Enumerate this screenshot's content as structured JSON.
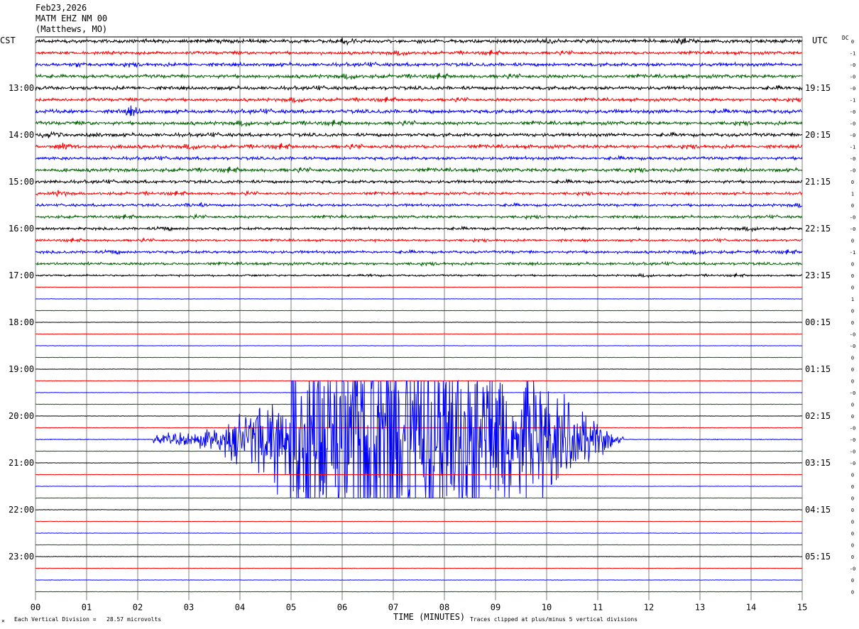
{
  "header": {
    "date": "Feb23,2026",
    "station": "MATM EHZ NM 00",
    "location": "(Matthews, MO)"
  },
  "left_axis_label": "CST",
  "right_axis_label": "UTC",
  "dc_label": "DC",
  "footer": {
    "mark": "✕",
    "scale_note": "Each Vertical Division =   28.57 microvolts",
    "clip_note": "Traces clipped at plus/minus 5 vertical divisions"
  },
  "colors": {
    "trace_cycle": [
      "#000000",
      "#ff0000",
      "#0000ff",
      "#006400"
    ],
    "grid": "#7f7f7f",
    "background": "#ffffff"
  },
  "chart_data": {
    "type": "line",
    "title": "",
    "xlabel": "TIME (MINUTES)",
    "ylabel": "",
    "x_ticks": [
      "00",
      "01",
      "02",
      "03",
      "04",
      "05",
      "06",
      "07",
      "08",
      "09",
      "10",
      "11",
      "12",
      "13",
      "14",
      "15"
    ],
    "xlim": [
      0,
      15
    ],
    "trace_minutes_each": 15,
    "trace_count": 48,
    "first_trace_start_cst": "12:00",
    "left_hour_labels": [
      {
        "trace": 4,
        "label": "13:00"
      },
      {
        "trace": 8,
        "label": "14:00"
      },
      {
        "trace": 12,
        "label": "15:00"
      },
      {
        "trace": 16,
        "label": "16:00"
      },
      {
        "trace": 20,
        "label": "17:00"
      },
      {
        "trace": 24,
        "label": "18:00"
      },
      {
        "trace": 28,
        "label": "19:00"
      },
      {
        "trace": 32,
        "label": "20:00"
      },
      {
        "trace": 36,
        "label": "21:00"
      },
      {
        "trace": 40,
        "label": "22:00"
      },
      {
        "trace": 44,
        "label": "23:00"
      }
    ],
    "right_hour_labels": [
      {
        "trace": 4,
        "label": "19:15"
      },
      {
        "trace": 8,
        "label": "20:15"
      },
      {
        "trace": 12,
        "label": "21:15"
      },
      {
        "trace": 16,
        "label": "22:15"
      },
      {
        "trace": 20,
        "label": "23:15"
      },
      {
        "trace": 24,
        "label": "00:15"
      },
      {
        "trace": 28,
        "label": "01:15"
      },
      {
        "trace": 32,
        "label": "02:15"
      },
      {
        "trace": 36,
        "label": "03:15"
      },
      {
        "trace": 40,
        "label": "04:15"
      },
      {
        "trace": 44,
        "label": "05:15"
      }
    ],
    "dc_offsets": [
      "0",
      "-1",
      "-0",
      "-0",
      "-0",
      "-1",
      "-0",
      "-0",
      "-0",
      "-1",
      "-0",
      "-0",
      "0",
      "1",
      "0",
      "-0",
      "-0",
      "0",
      "-1",
      "0",
      "0",
      "0",
      "1",
      "0",
      "0",
      "-0",
      "-0",
      "0",
      "0",
      "0",
      "-0",
      "0",
      "0",
      "-0",
      "-0",
      "-0",
      "-0",
      "0",
      "0",
      "0",
      "0",
      "0",
      "0",
      "0",
      "0",
      "-0",
      "0",
      "0"
    ],
    "trace_activity": [
      {
        "trace": 0,
        "noise": 0.45
      },
      {
        "trace": 1,
        "noise": 0.4
      },
      {
        "trace": 2,
        "noise": 0.45
      },
      {
        "trace": 3,
        "noise": 0.45
      },
      {
        "trace": 4,
        "noise": 0.45
      },
      {
        "trace": 5,
        "noise": 0.4
      },
      {
        "trace": 6,
        "noise": 0.5
      },
      {
        "trace": 7,
        "noise": 0.45
      },
      {
        "trace": 8,
        "noise": 0.45
      },
      {
        "trace": 9,
        "noise": 0.45
      },
      {
        "trace": 10,
        "noise": 0.4
      },
      {
        "trace": 11,
        "noise": 0.45
      },
      {
        "trace": 12,
        "noise": 0.4
      },
      {
        "trace": 13,
        "noise": 0.35
      },
      {
        "trace": 14,
        "noise": 0.35
      },
      {
        "trace": 15,
        "noise": 0.35
      },
      {
        "trace": 16,
        "noise": 0.35
      },
      {
        "trace": 17,
        "noise": 0.3
      },
      {
        "trace": 18,
        "noise": 0.35
      },
      {
        "trace": 19,
        "noise": 0.35
      },
      {
        "trace": 20,
        "noise": 0.25
      },
      {
        "trace": 21,
        "noise": 0.05
      },
      {
        "trace": 22,
        "noise": 0.05
      },
      {
        "trace": 23,
        "noise": 0.05
      },
      {
        "trace": 24,
        "noise": 0.05
      },
      {
        "trace": 25,
        "noise": 0.05
      },
      {
        "trace": 26,
        "noise": 0.05
      },
      {
        "trace": 27,
        "noise": 0.05
      },
      {
        "trace": 28,
        "noise": 0.05
      },
      {
        "trace": 29,
        "noise": 0.05
      },
      {
        "trace": 30,
        "noise": 0.05
      },
      {
        "trace": 31,
        "noise": 0.05
      },
      {
        "trace": 32,
        "noise": 0.05
      },
      {
        "trace": 33,
        "noise": 0.08
      },
      {
        "trace": 34,
        "noise": 0.1
      },
      {
        "trace": 35,
        "noise": 0.05
      },
      {
        "trace": 36,
        "noise": 0.05
      },
      {
        "trace": 37,
        "noise": 0.05
      },
      {
        "trace": 38,
        "noise": 0.05
      },
      {
        "trace": 39,
        "noise": 0.05
      },
      {
        "trace": 40,
        "noise": 0.06
      },
      {
        "trace": 41,
        "noise": 0.05
      },
      {
        "trace": 42,
        "noise": 0.05
      },
      {
        "trace": 43,
        "noise": 0.05
      },
      {
        "trace": 44,
        "noise": 0.06
      },
      {
        "trace": 45,
        "noise": 0.05
      },
      {
        "trace": 46,
        "noise": 0.05
      },
      {
        "trace": 47,
        "noise": 0.05
      }
    ],
    "event": {
      "trace": 34,
      "start_minute": 2.3,
      "peak_start_minute": 5.0,
      "peak_end_minute": 8.0,
      "end_minute": 11.5,
      "clip_divisions": 5
    }
  }
}
